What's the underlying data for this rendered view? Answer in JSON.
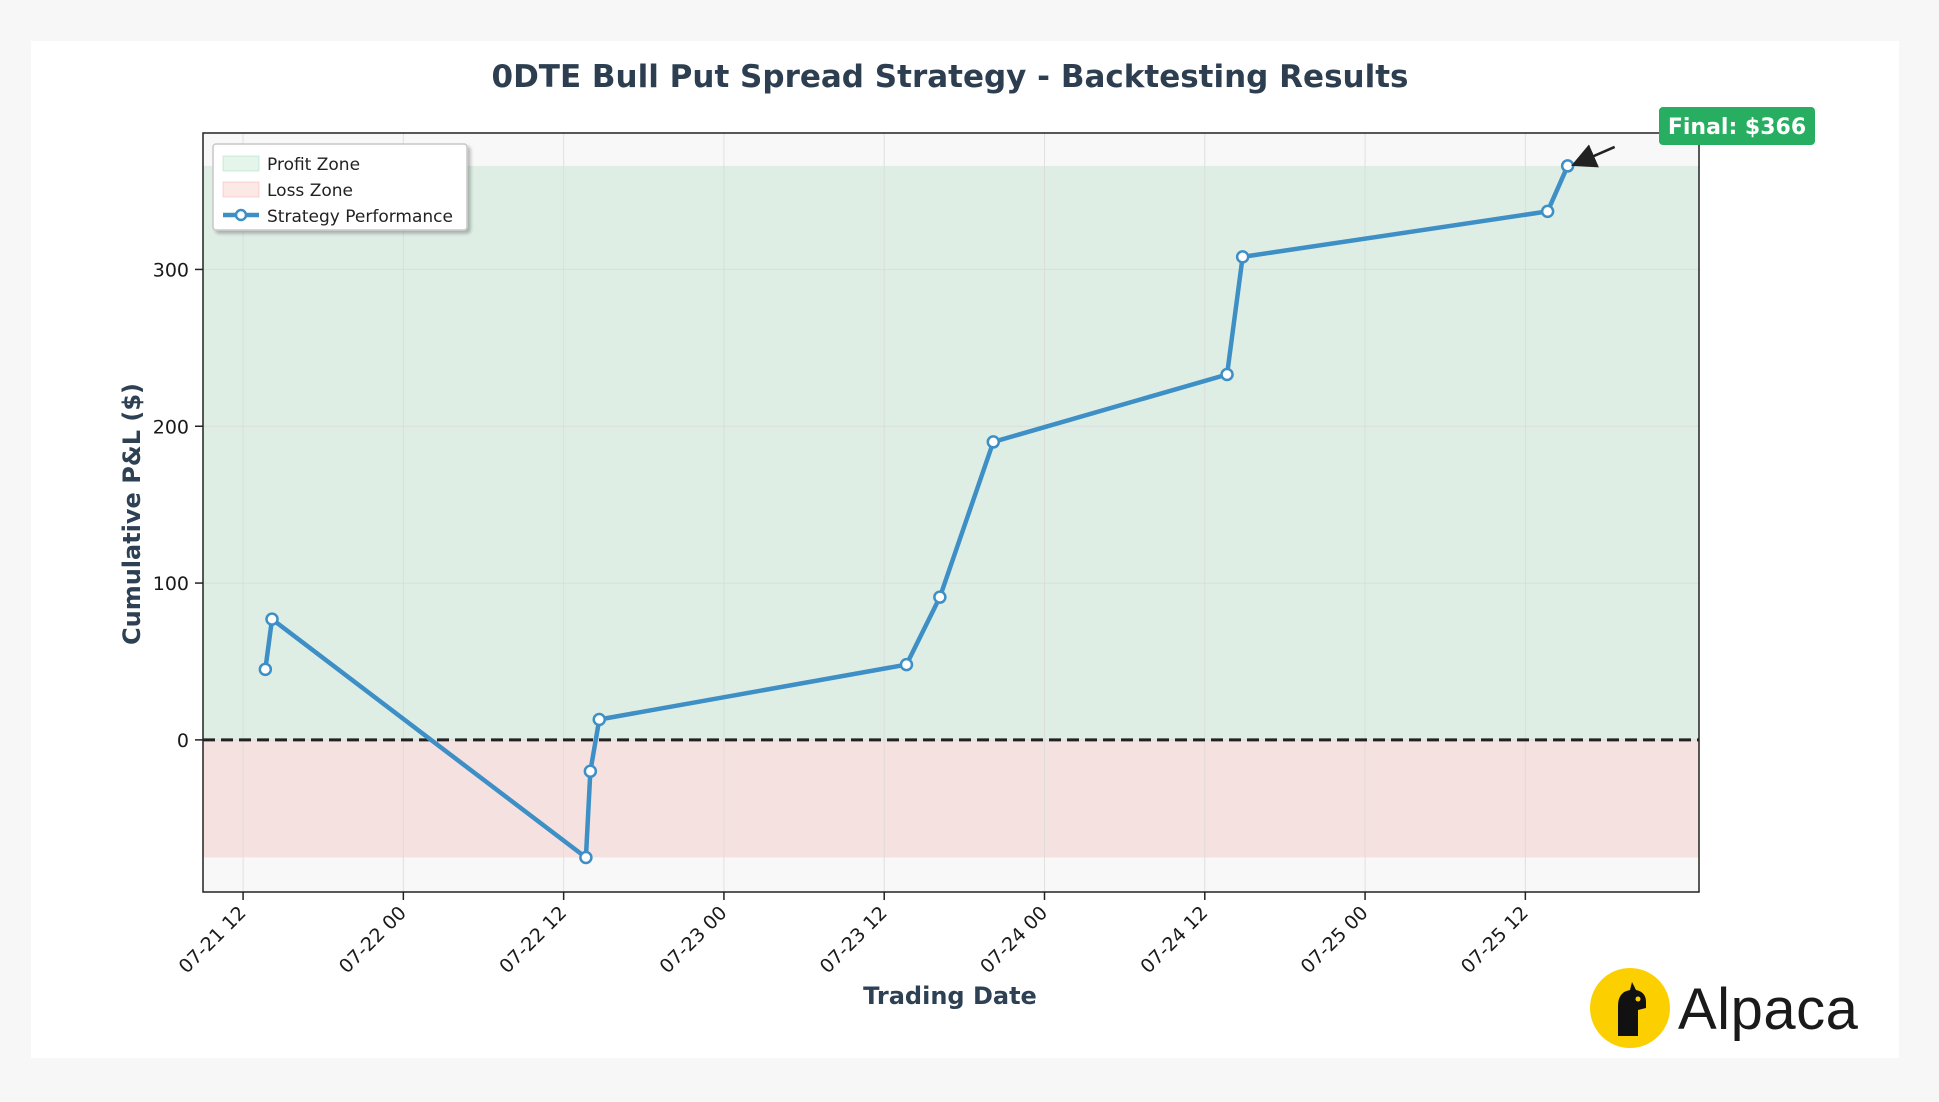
{
  "chart_data": {
    "type": "line",
    "title": "0DTE Bull Put Spread Strategy - Backtesting Results",
    "xlabel": "Trading Date",
    "ylabel": "Cumulative P&L ($)",
    "x_ticks": [
      "07-21 12",
      "07-22 00",
      "07-22 12",
      "07-23 00",
      "07-23 12",
      "07-24 00",
      "07-24 12",
      "07-25 00",
      "07-25 12"
    ],
    "y_ticks": [
      0,
      100,
      200,
      300
    ],
    "xlim": [
      "2025-07-21 09:00",
      "2025-07-26 01:00"
    ],
    "ylim": [
      -97,
      387
    ],
    "grid": true,
    "legend_position": "top-left",
    "legend": [
      "Profit Zone",
      "Loss Zone",
      "Strategy Performance"
    ],
    "zones": {
      "profit": {
        "from": 0,
        "to": 366,
        "color": "#27ae60"
      },
      "loss": {
        "from": -75,
        "to": 0,
        "color": "#e74c3c"
      }
    },
    "reference_line": {
      "y": 0,
      "style": "dashed",
      "color": "#222222"
    },
    "series": [
      {
        "name": "Strategy Performance",
        "color": "#3d8fc6",
        "points": [
          {
            "x": "2025-07-21 13:40",
            "y": 45
          },
          {
            "x": "2025-07-21 14:10",
            "y": 77
          },
          {
            "x": "2025-07-22 13:40",
            "y": -75
          },
          {
            "x": "2025-07-22 14:00",
            "y": -20
          },
          {
            "x": "2025-07-22 14:40",
            "y": 13
          },
          {
            "x": "2025-07-23 13:40",
            "y": 48
          },
          {
            "x": "2025-07-23 16:10",
            "y": 91
          },
          {
            "x": "2025-07-23 20:10",
            "y": 190
          },
          {
            "x": "2025-07-24 13:40",
            "y": 233
          },
          {
            "x": "2025-07-24 14:50",
            "y": 308
          },
          {
            "x": "2025-07-25 13:40",
            "y": 337
          },
          {
            "x": "2025-07-25 15:10",
            "y": 366
          }
        ]
      }
    ],
    "annotation": {
      "text": "Final: $366",
      "color": "#27ae60"
    }
  },
  "branding": {
    "logo_text": "Alpaca",
    "logo_color": "#fcd000"
  }
}
